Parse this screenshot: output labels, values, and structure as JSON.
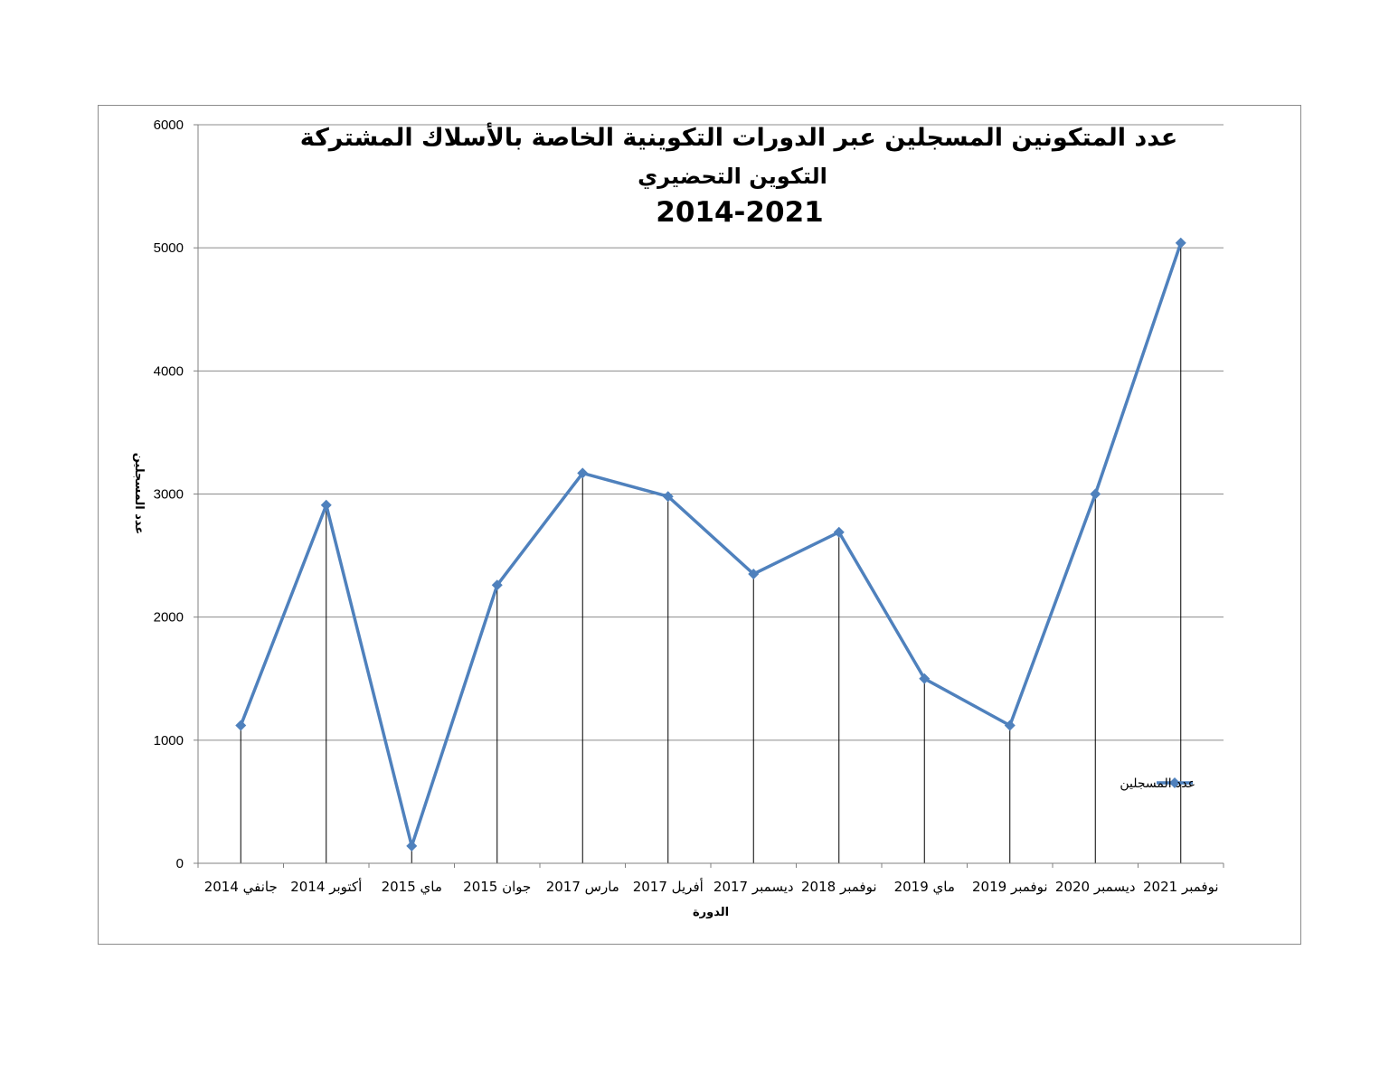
{
  "chart_data": {
    "type": "line",
    "title": [
      "عدد المتكونين المسجلين عبر الدورات التكوينية الخاصة بالأسلاك المشتركة",
      "التكوين التحضيري",
      "2014-2021"
    ],
    "xlabel": "الدورة",
    "ylabel": "عدد المسجلين",
    "ylim": [
      0,
      6000
    ],
    "yticks": [
      0,
      1000,
      2000,
      3000,
      4000,
      5000,
      6000
    ],
    "grid": true,
    "legend": "right",
    "categories": [
      "جانفي 2014",
      "أكتوبر 2014",
      "ماي 2015",
      "جوان 2015",
      "مارس 2017",
      "أفريل 2017",
      "ديسمبر 2017",
      "نوفمبر 2018",
      "ماي 2019",
      "نوفمبر 2019",
      "ديسمبر 2020",
      "نوفمبر 2021"
    ],
    "series": [
      {
        "name": "عدد المسجلين",
        "color": "#4f81bd",
        "values": [
          1120,
          2910,
          140,
          2260,
          3170,
          2980,
          2350,
          2690,
          1500,
          1120,
          3000,
          5040
        ]
      }
    ]
  }
}
